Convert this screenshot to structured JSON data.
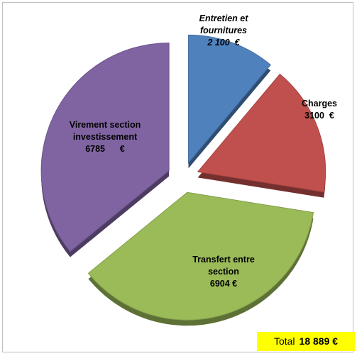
{
  "chart_data": {
    "type": "pie",
    "categories": [
      "Entretien et fournitures",
      "Charges",
      "Transfert entre section",
      "Virement section investissement"
    ],
    "values": [
      2100,
      3100,
      6904,
      6785
    ],
    "value_labels": [
      "2 100  €",
      "3100  €",
      "6904 €",
      "6785      €"
    ],
    "colors": [
      "#4f81bd",
      "#c0504d",
      "#9bbb59",
      "#8064a2"
    ],
    "total": {
      "label": "Total",
      "value_label": "18 889 €"
    }
  }
}
